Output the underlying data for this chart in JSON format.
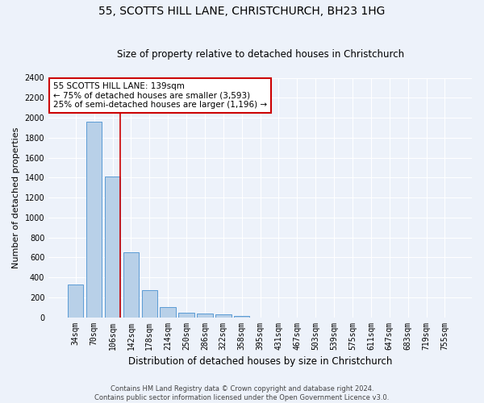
{
  "title": "55, SCOTTS HILL LANE, CHRISTCHURCH, BH23 1HG",
  "subtitle": "Size of property relative to detached houses in Christchurch",
  "xlabel": "Distribution of detached houses by size in Christchurch",
  "ylabel": "Number of detached properties",
  "bar_labels": [
    "34sqm",
    "70sqm",
    "106sqm",
    "142sqm",
    "178sqm",
    "214sqm",
    "250sqm",
    "286sqm",
    "322sqm",
    "358sqm",
    "395sqm",
    "431sqm",
    "467sqm",
    "503sqm",
    "539sqm",
    "575sqm",
    "611sqm",
    "647sqm",
    "683sqm",
    "719sqm",
    "755sqm"
  ],
  "bar_values": [
    325,
    1960,
    1410,
    650,
    275,
    105,
    45,
    35,
    25,
    15,
    0,
    0,
    0,
    0,
    0,
    0,
    0,
    0,
    0,
    0,
    0
  ],
  "bar_color": "#b8d0e8",
  "bar_edge_color": "#5b9bd5",
  "ylim": [
    0,
    2400
  ],
  "yticks": [
    0,
    200,
    400,
    600,
    800,
    1000,
    1200,
    1400,
    1600,
    1800,
    2000,
    2200,
    2400
  ],
  "vline_x": 2.43,
  "vline_color": "#cc0000",
  "annotation_text": "55 SCOTTS HILL LANE: 139sqm\n← 75% of detached houses are smaller (3,593)\n25% of semi-detached houses are larger (1,196) →",
  "annotation_box_color": "#ffffff",
  "annotation_box_edge": "#cc0000",
  "footer_line1": "Contains HM Land Registry data © Crown copyright and database right 2024.",
  "footer_line2": "Contains public sector information licensed under the Open Government Licence v3.0.",
  "bg_color": "#edf2fa",
  "grid_color": "#ffffff",
  "title_fontsize": 10,
  "subtitle_fontsize": 8.5,
  "ylabel_fontsize": 8,
  "xlabel_fontsize": 8.5,
  "tick_fontsize": 7,
  "annotation_fontsize": 7.5,
  "footer_fontsize": 6
}
